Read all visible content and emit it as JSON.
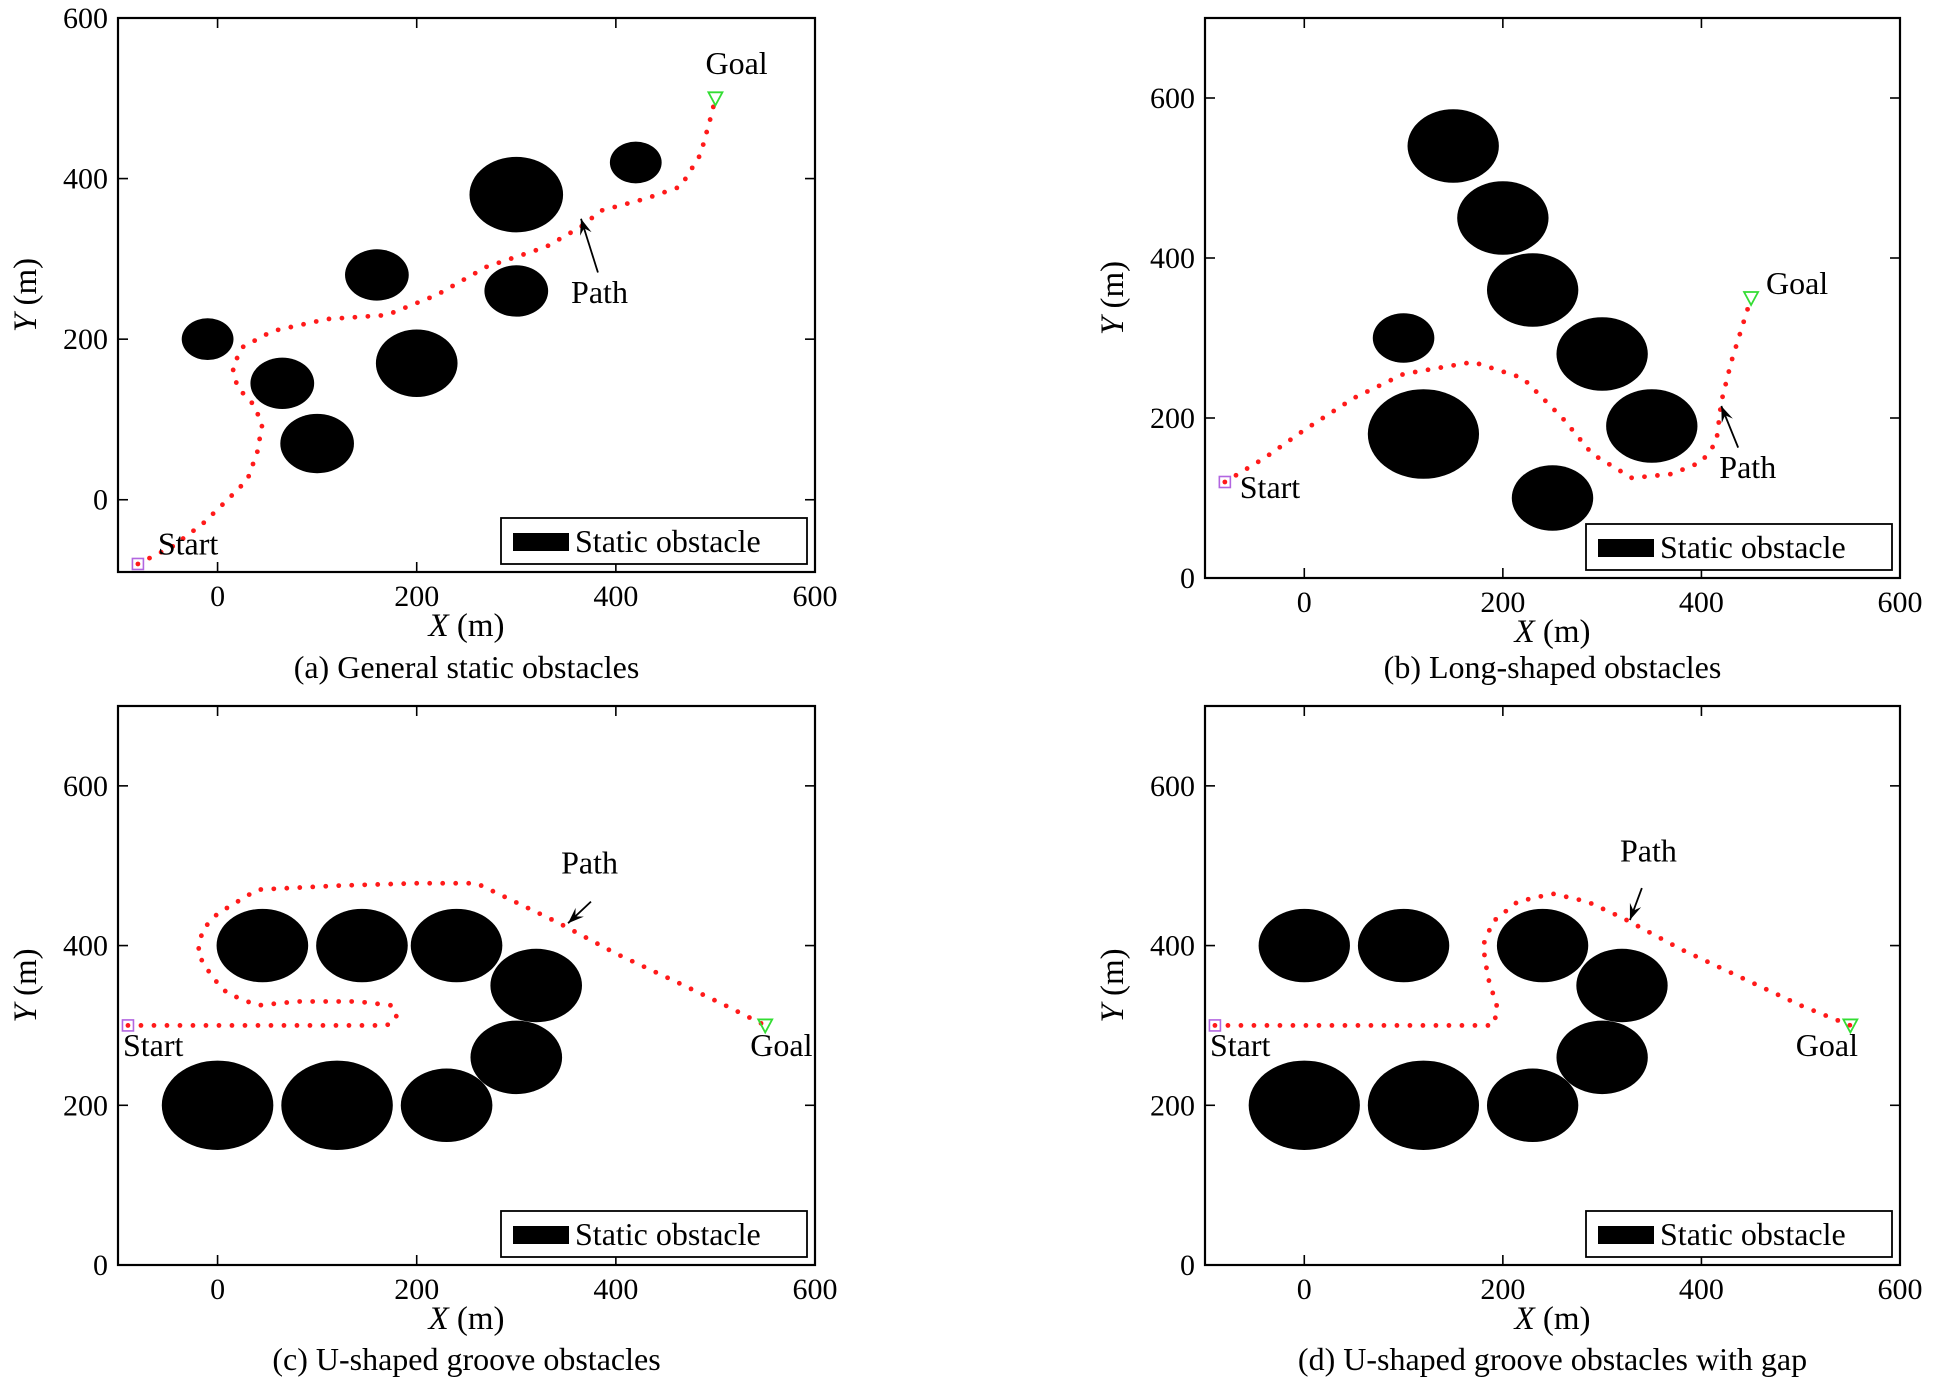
{
  "colors": {
    "obstacle": "#000000",
    "path": "#ff1a1a",
    "start": "#b266e0",
    "goal": "#33dd33",
    "axis": "#000000"
  },
  "chart_data": [
    {
      "type": "scatter",
      "caption": "(a) General static obstacles",
      "xlabel_var": "X",
      "xlabel_unit": " (m)",
      "ylabel_var": "Y",
      "ylabel_unit": " (m)",
      "xlim": [
        -100,
        600
      ],
      "ylim": [
        -90,
        600
      ],
      "xticks": [
        0,
        200,
        400,
        600
      ],
      "yticks": [
        0,
        200,
        400,
        600
      ],
      "grid": false,
      "legend": {
        "label": "Static obstacle",
        "placement": "bottom-right"
      },
      "obstacles": [
        {
          "x": -10,
          "y": 200,
          "rx": 26,
          "ry": 26
        },
        {
          "x": 65,
          "y": 145,
          "rx": 32,
          "ry": 32
        },
        {
          "x": 100,
          "y": 70,
          "rx": 37,
          "ry": 37
        },
        {
          "x": 160,
          "y": 280,
          "rx": 32,
          "ry": 32
        },
        {
          "x": 200,
          "y": 170,
          "rx": 41,
          "ry": 42
        },
        {
          "x": 300,
          "y": 260,
          "rx": 32,
          "ry": 32
        },
        {
          "x": 300,
          "y": 380,
          "rx": 47,
          "ry": 47
        },
        {
          "x": 420,
          "y": 420,
          "rx": 26,
          "ry": 26
        }
      ],
      "start": {
        "x": -80,
        "y": -80
      },
      "goal": {
        "x": 500,
        "y": 500
      },
      "path": [
        [
          -80,
          -80
        ],
        [
          -45,
          -58
        ],
        [
          -15,
          -30
        ],
        [
          10,
          0
        ],
        [
          30,
          25
        ],
        [
          40,
          60
        ],
        [
          45,
          95
        ],
        [
          35,
          120
        ],
        [
          20,
          140
        ],
        [
          15,
          165
        ],
        [
          25,
          190
        ],
        [
          55,
          210
        ],
        [
          110,
          225
        ],
        [
          170,
          230
        ],
        [
          220,
          255
        ],
        [
          270,
          290
        ],
        [
          330,
          315
        ],
        [
          365,
          340
        ],
        [
          385,
          360
        ],
        [
          430,
          375
        ],
        [
          465,
          390
        ],
        [
          485,
          430
        ],
        [
          495,
          475
        ],
        [
          500,
          500
        ]
      ],
      "labels": {
        "start": "Start",
        "goal": "Goal",
        "path": "Path"
      },
      "annotations": {
        "start": {
          "x": -60,
          "y": -68
        },
        "goal": {
          "x": 490,
          "y": 530
        },
        "path": {
          "x": 355,
          "y": 245
        },
        "arrow": {
          "from": [
            382,
            283
          ],
          "to": [
            365,
            350
          ]
        }
      }
    },
    {
      "type": "scatter",
      "caption": "(b) Long-shaped obstacles",
      "xlabel_var": "X",
      "xlabel_unit": " (m)",
      "ylabel_var": "Y",
      "ylabel_unit": " (m)",
      "xlim": [
        -100,
        600
      ],
      "ylim": [
        0,
        700
      ],
      "xticks": [
        0,
        200,
        400,
        600
      ],
      "yticks": [
        0,
        200,
        400,
        600
      ],
      "grid": false,
      "legend": {
        "label": "Static obstacle",
        "placement": "bottom-right"
      },
      "obstacles": [
        {
          "x": 150,
          "y": 540,
          "rx": 46,
          "ry": 46
        },
        {
          "x": 200,
          "y": 450,
          "rx": 46,
          "ry": 46
        },
        {
          "x": 230,
          "y": 360,
          "rx": 46,
          "ry": 46
        },
        {
          "x": 100,
          "y": 300,
          "rx": 31,
          "ry": 31
        },
        {
          "x": 300,
          "y": 280,
          "rx": 46,
          "ry": 46
        },
        {
          "x": 120,
          "y": 180,
          "rx": 56,
          "ry": 56
        },
        {
          "x": 350,
          "y": 190,
          "rx": 46,
          "ry": 46
        },
        {
          "x": 250,
          "y": 100,
          "rx": 41,
          "ry": 41
        }
      ],
      "start": {
        "x": -80,
        "y": 120
      },
      "goal": {
        "x": 450,
        "y": 350
      },
      "path": [
        [
          -80,
          120
        ],
        [
          -40,
          150
        ],
        [
          0,
          185
        ],
        [
          50,
          225
        ],
        [
          100,
          255
        ],
        [
          170,
          270
        ],
        [
          220,
          250
        ],
        [
          260,
          200
        ],
        [
          290,
          155
        ],
        [
          330,
          125
        ],
        [
          370,
          130
        ],
        [
          400,
          145
        ],
        [
          415,
          170
        ],
        [
          420,
          220
        ],
        [
          430,
          270
        ],
        [
          440,
          310
        ],
        [
          450,
          350
        ]
      ],
      "labels": {
        "start": "Start",
        "goal": "Goal",
        "path": "Path"
      },
      "annotations": {
        "start": {
          "x": -65,
          "y": 100
        },
        "goal": {
          "x": 465,
          "y": 355
        },
        "path": {
          "x": 418,
          "y": 125
        },
        "arrow": {
          "from": [
            437,
            163
          ],
          "to": [
            420,
            215
          ]
        }
      }
    },
    {
      "type": "scatter",
      "caption": "(c) U-shaped groove obstacles",
      "xlabel_var": "X",
      "xlabel_unit": " (m)",
      "ylabel_var": "Y",
      "ylabel_unit": " (m)",
      "xlim": [
        -100,
        600
      ],
      "ylim": [
        0,
        700
      ],
      "xticks": [
        0,
        200,
        400,
        600
      ],
      "yticks": [
        0,
        200,
        400,
        600
      ],
      "grid": false,
      "legend": {
        "label": "Static obstacle",
        "placement": "bottom-right"
      },
      "obstacles": [
        {
          "x": 45,
          "y": 400,
          "rx": 46,
          "ry": 46
        },
        {
          "x": 145,
          "y": 400,
          "rx": 46,
          "ry": 46
        },
        {
          "x": 240,
          "y": 400,
          "rx": 46,
          "ry": 46
        },
        {
          "x": 320,
          "y": 350,
          "rx": 46,
          "ry": 46
        },
        {
          "x": 300,
          "y": 260,
          "rx": 46,
          "ry": 46
        },
        {
          "x": 0,
          "y": 200,
          "rx": 56,
          "ry": 56
        },
        {
          "x": 120,
          "y": 200,
          "rx": 56,
          "ry": 56
        },
        {
          "x": 230,
          "y": 200,
          "rx": 46,
          "ry": 46
        }
      ],
      "start": {
        "x": -90,
        "y": 300
      },
      "goal": {
        "x": 550,
        "y": 300
      },
      "path": [
        [
          -90,
          300
        ],
        [
          -40,
          300
        ],
        [
          20,
          300
        ],
        [
          100,
          300
        ],
        [
          170,
          300
        ],
        [
          180,
          310
        ],
        [
          175,
          325
        ],
        [
          140,
          330
        ],
        [
          80,
          330
        ],
        [
          40,
          325
        ],
        [
          10,
          340
        ],
        [
          -5,
          360
        ],
        [
          -20,
          390
        ],
        [
          -15,
          420
        ],
        [
          0,
          440
        ],
        [
          40,
          470
        ],
        [
          120,
          475
        ],
        [
          200,
          478
        ],
        [
          260,
          478
        ],
        [
          290,
          460
        ],
        [
          340,
          430
        ],
        [
          400,
          390
        ],
        [
          460,
          355
        ],
        [
          510,
          325
        ],
        [
          550,
          300
        ]
      ],
      "labels": {
        "start": "Start",
        "goal": "Goal",
        "path": "Path"
      },
      "annotations": {
        "start": {
          "x": -95,
          "y": 262
        },
        "goal": {
          "x": 535,
          "y": 262
        },
        "path": {
          "x": 345,
          "y": 490
        },
        "arrow": {
          "from": [
            375,
            455
          ],
          "to": [
            352,
            428
          ]
        }
      }
    },
    {
      "type": "scatter",
      "caption": "(d) U-shaped groove obstacles with gap",
      "xlabel_var": "X",
      "xlabel_unit": " (m)",
      "ylabel_var": "Y",
      "ylabel_unit": " (m)",
      "xlim": [
        -100,
        600
      ],
      "ylim": [
        0,
        700
      ],
      "xticks": [
        0,
        200,
        400,
        600
      ],
      "yticks": [
        0,
        200,
        400,
        600
      ],
      "grid": false,
      "legend": {
        "label": "Static obstacle",
        "placement": "bottom-right"
      },
      "obstacles": [
        {
          "x": 0,
          "y": 400,
          "rx": 46,
          "ry": 46
        },
        {
          "x": 100,
          "y": 400,
          "rx": 46,
          "ry": 46
        },
        {
          "x": 240,
          "y": 400,
          "rx": 46,
          "ry": 46
        },
        {
          "x": 320,
          "y": 350,
          "rx": 46,
          "ry": 46
        },
        {
          "x": 300,
          "y": 260,
          "rx": 46,
          "ry": 46
        },
        {
          "x": 0,
          "y": 200,
          "rx": 56,
          "ry": 56
        },
        {
          "x": 120,
          "y": 200,
          "rx": 56,
          "ry": 56
        },
        {
          "x": 230,
          "y": 200,
          "rx": 46,
          "ry": 46
        }
      ],
      "start": {
        "x": -90,
        "y": 300
      },
      "goal": {
        "x": 550,
        "y": 300
      },
      "path": [
        [
          -90,
          300
        ],
        [
          0,
          300
        ],
        [
          100,
          300
        ],
        [
          190,
          300
        ],
        [
          195,
          320
        ],
        [
          185,
          360
        ],
        [
          180,
          400
        ],
        [
          190,
          430
        ],
        [
          215,
          455
        ],
        [
          250,
          465
        ],
        [
          285,
          455
        ],
        [
          320,
          435
        ],
        [
          380,
          395
        ],
        [
          440,
          360
        ],
        [
          500,
          325
        ],
        [
          550,
          300
        ]
      ],
      "labels": {
        "start": "Start",
        "goal": "Goal",
        "path": "Path"
      },
      "annotations": {
        "start": {
          "x": -95,
          "y": 262
        },
        "goal": {
          "x": 495,
          "y": 262
        },
        "path": {
          "x": 318,
          "y": 505
        },
        "arrow": {
          "from": [
            340,
            472
          ],
          "to": [
            328,
            432
          ]
        }
      }
    }
  ]
}
